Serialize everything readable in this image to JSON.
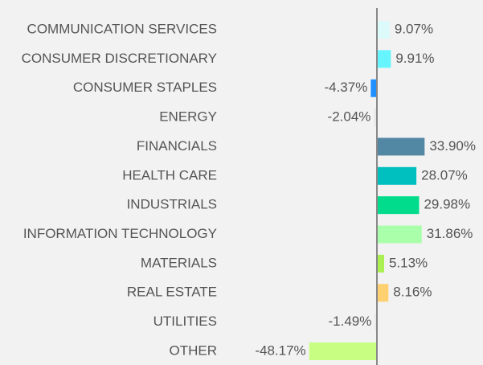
{
  "chart_data": {
    "type": "bar",
    "orientation": "horizontal",
    "categories": [
      "COMMUNICATION SERVICES",
      "CONSUMER DISCRETIONARY",
      "CONSUMER STAPLES",
      "ENERGY",
      "FINANCIALS",
      "HEALTH CARE",
      "INDUSTRIALS",
      "INFORMATION TECHNOLOGY",
      "MATERIALS",
      "REAL ESTATE",
      "UTILITIES",
      "OTHER"
    ],
    "values": [
      9.07,
      9.91,
      -4.37,
      -2.04,
      33.9,
      28.07,
      29.98,
      31.86,
      5.13,
      8.16,
      -1.49,
      -48.17
    ],
    "value_labels": [
      "9.07%",
      "9.91%",
      "-4.37%",
      "-2.04%",
      "33.90%",
      "28.07%",
      "29.98%",
      "31.86%",
      "5.13%",
      "8.16%",
      "-1.49%",
      "-48.17%"
    ],
    "colors": [
      "#dcfafa",
      "#66f5ff",
      "#1e90ff",
      "#e8e8e8",
      "#5288a4",
      "#00bfbf",
      "#00dc8c",
      "#aaffaa",
      "#aaf050",
      "#ffd070",
      "#e8e8e8",
      "#c8ff82"
    ]
  }
}
